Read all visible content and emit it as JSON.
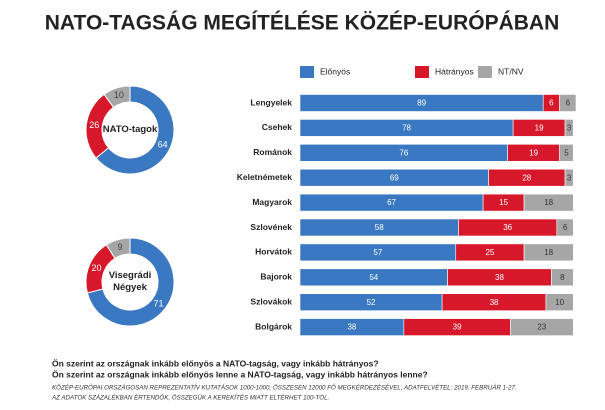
{
  "title": "NATO-TAGSÁG MEGÍTÉLÉSE KÖZÉP-EURÓPÁBAN",
  "chart_data": [
    {
      "type": "donut",
      "title": "NATO-tagok",
      "values": [
        64,
        26,
        10
      ],
      "colors": [
        "#3a78c2",
        "#d7182a",
        "#a6a6a6"
      ]
    },
    {
      "type": "donut",
      "title": "Visegrádi Négyek",
      "values": [
        71,
        20,
        9
      ],
      "colors": [
        "#3a78c2",
        "#d7182a",
        "#a6a6a6"
      ]
    },
    {
      "type": "stacked-bar-horizontal",
      "categories": [
        "Lengyelek",
        "Csehek",
        "Románok",
        "Keletnémetek",
        "Magyarok",
        "Szlovének",
        "Horvátok",
        "Bajorok",
        "Szlovákok",
        "Bolgárok"
      ],
      "series": [
        {
          "name": "Előnyös",
          "color": "#3a78c2",
          "values": [
            89,
            78,
            76,
            69,
            67,
            58,
            57,
            54,
            52,
            38
          ]
        },
        {
          "name": "Hátrányos",
          "color": "#d7182a",
          "values": [
            6,
            19,
            19,
            28,
            15,
            36,
            25,
            38,
            38,
            39
          ]
        },
        {
          "name": "NT/NV",
          "color": "#a6a6a6",
          "values": [
            6,
            3,
            5,
            3,
            18,
            6,
            18,
            8,
            10,
            23
          ]
        }
      ]
    }
  ],
  "questions": [
    "Ön szerint az országnak inkább előnyös a NATO-tagság, vagy inkább hátrányos?",
    "Ön szerint az országnak inkább előnyös lenne a NATO-tagság, vagy inkább hátrányos lenne?"
  ],
  "notes": [
    "KÖZÉP-EURÓPAI ORSZÁGOSAN REPREZENTATÍV KUTATÁSOK 1000-1000, ÖSSZESEN 12000 FŐ MEGKÉRDEZÉSÉVEL, ADATFELVÉTEL: 2019. FEBRUÁR 1-27.",
    "AZ ADATOK SZÁZALÉKBAN ÉRTENDŐK, ÖSSZEGÜK A KEREKÍTÉS MIATT ELTÉRHET 100-TÓL."
  ]
}
